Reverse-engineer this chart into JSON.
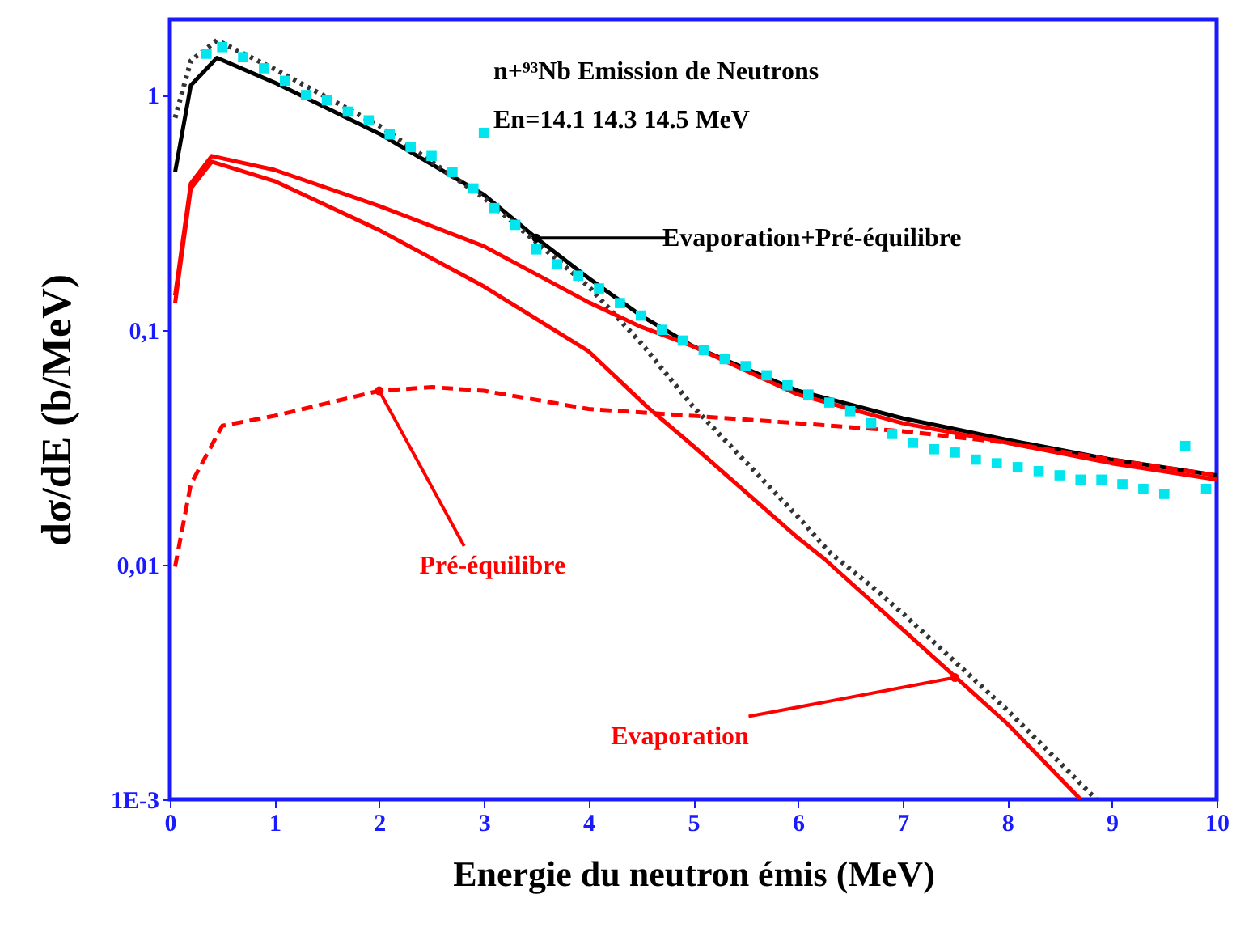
{
  "chart_data": {
    "type": "line",
    "title": "n+⁹³Nb  Emission de Neutrons",
    "subtitle": "En=14.1  14.3 14.5 MeV",
    "xlabel": "Energie du neutron émis    (MeV)",
    "ylabel": "dσ/dE    (b/MeV)",
    "log": "y",
    "grid": false,
    "xlim": [
      0,
      10
    ],
    "xticks": [
      0,
      1,
      2,
      3,
      4,
      5,
      6,
      7,
      8,
      9,
      10
    ],
    "ylim": [
      0.001,
      2.1
    ],
    "yticks": [
      1,
      {
        "value": 0.1,
        "label": "0,1"
      },
      {
        "value": 0.01,
        "label": "0,01"
      },
      {
        "value": 0.001,
        "label": "1E-3"
      }
    ],
    "series": [
      {
        "type": "scatter",
        "marker": "square",
        "color": "#00e5ee",
        "x": [
          0.35,
          0.5,
          0.7,
          0.9,
          1.1,
          1.3,
          1.5,
          1.7,
          1.9,
          2.1,
          2.3,
          2.5,
          2.7,
          2.9,
          3.0,
          3.1,
          3.3,
          3.5,
          3.7,
          3.9,
          4.1,
          4.3,
          4.5,
          4.7,
          4.9,
          5.1,
          5.3,
          5.5,
          5.7,
          5.9,
          6.1,
          6.3,
          6.5,
          6.7,
          6.9,
          7.1,
          7.3,
          7.5,
          7.7,
          7.9,
          8.1,
          8.3,
          8.5,
          8.7,
          8.9,
          9.1,
          9.3,
          9.5,
          9.7,
          9.9
        ],
        "values": [
          1.5,
          1.6,
          1.45,
          1.3,
          1.15,
          1.0,
          0.95,
          0.85,
          0.78,
          0.68,
          0.6,
          0.55,
          0.47,
          0.4,
          0.69,
          0.33,
          0.28,
          0.22,
          0.19,
          0.17,
          0.15,
          0.13,
          0.115,
          0.1,
          0.09,
          0.082,
          0.075,
          0.07,
          0.064,
          0.058,
          0.053,
          0.049,
          0.045,
          0.04,
          0.036,
          0.033,
          0.031,
          0.03,
          0.028,
          0.027,
          0.026,
          0.025,
          0.024,
          0.023,
          0.023,
          0.022,
          0.021,
          0.02,
          0.032,
          0.021
        ]
      },
      {
        "color": "#000000",
        "line_style": "solid",
        "x": [
          0.05,
          0.2,
          0.45,
          1,
          2,
          3,
          3.5,
          4,
          4.5,
          5,
          6,
          7,
          8,
          9,
          10
        ],
        "values": [
          0.47,
          1.1,
          1.44,
          1.13,
          0.685,
          0.376,
          0.246,
          0.166,
          0.115,
          0.085,
          0.055,
          0.042,
          0.034,
          0.028,
          0.024
        ]
      },
      {
        "color": "#333333",
        "line_style": "dotted",
        "x": [
          0.05,
          0.2,
          0.45,
          1,
          2,
          3,
          4,
          4.5,
          5,
          6,
          6.3,
          6.73,
          7,
          8,
          8.85
        ],
        "values": [
          0.8,
          1.4,
          1.71,
          1.29,
          0.74,
          0.365,
          0.153,
          0.088,
          0.047,
          0.016,
          0.0113,
          0.0079,
          0.0062,
          0.0024,
          0.001
        ]
      },
      {
        "color": "#ff0000",
        "line_style": "solid",
        "x": [
          0.05,
          0.2,
          0.4,
          1,
          2,
          3,
          4,
          4.5,
          5,
          6,
          7,
          8,
          9,
          10
        ],
        "values": [
          0.14,
          0.42,
          0.55,
          0.48,
          0.337,
          0.227,
          0.131,
          0.103,
          0.085,
          0.053,
          0.04,
          0.033,
          0.027,
          0.023
        ]
      },
      {
        "color": "#ff0000",
        "line_style": "solid",
        "x": [
          0.05,
          0.2,
          0.4,
          1,
          2,
          3,
          4,
          4.56,
          5,
          6,
          6.25,
          7,
          8,
          8.7
        ],
        "values": [
          0.13,
          0.4,
          0.52,
          0.43,
          0.266,
          0.153,
          0.081,
          0.047,
          0.032,
          0.013,
          0.0106,
          0.0053,
          0.0021,
          0.001
        ]
      },
      {
        "color": "#ff0000",
        "line_style": "dashed",
        "x": [
          0.05,
          0.2,
          0.5,
          1,
          2,
          2.5,
          3,
          4,
          5,
          6,
          7,
          8,
          9,
          10
        ],
        "values": [
          0.0098,
          0.022,
          0.039,
          0.043,
          0.055,
          0.057,
          0.055,
          0.046,
          0.043,
          0.04,
          0.037,
          0.033,
          0.028,
          0.024
        ]
      }
    ],
    "annotations": [
      {
        "text": "Evaporation+Pré-équilibre",
        "x": 3.5,
        "y": 0.246
      },
      {
        "text": "Pré-équilibre",
        "x": 2,
        "y": 0.055
      },
      {
        "text": "Evaporation",
        "x": 7.5,
        "y": 0.0033
      }
    ]
  }
}
